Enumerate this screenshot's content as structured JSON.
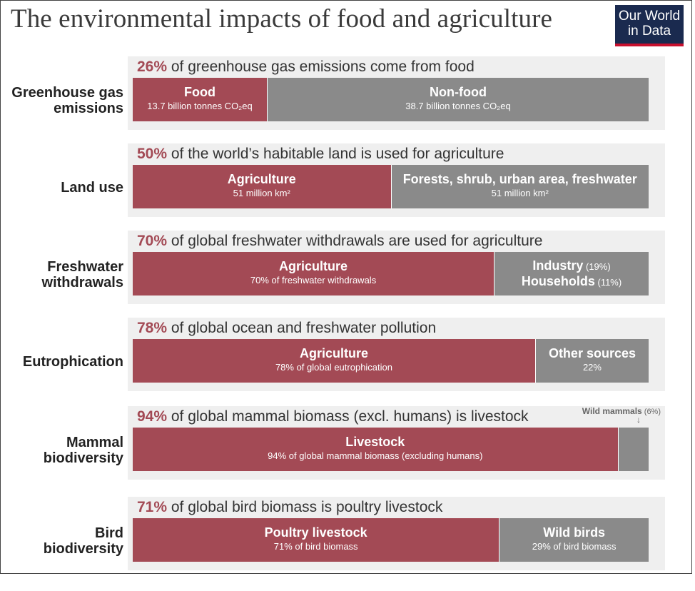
{
  "title": "The environmental impacts of food and agriculture",
  "logo": {
    "line1": "Our World",
    "line2": "in Data"
  },
  "colors": {
    "agri": "#a34a55",
    "other": "#8a8a8a",
    "panel": "#efefef",
    "pct": "#a34a55"
  },
  "chart_data": {
    "type": "bar",
    "stacked": true,
    "orientation": "horizontal",
    "rows": [
      {
        "label_lines": [
          "Greenhouse gas",
          "emissions"
        ],
        "headline_pct": "26%",
        "headline_text": " of greenhouse gas emissions come from food",
        "segments": [
          {
            "label": "Food",
            "sub": "13.7 billion tonnes CO₂eq",
            "value": 26,
            "color": "agri"
          },
          {
            "label": "Non-food",
            "sub": "38.7 billion tonnes CO₂eq",
            "value": 74,
            "color": "other"
          }
        ]
      },
      {
        "label_lines": [
          "Land use"
        ],
        "headline_pct": "50%",
        "headline_text": " of the world’s habitable land is used for agriculture",
        "segments": [
          {
            "label": "Agriculture",
            "sub": "51 million km²",
            "value": 50,
            "color": "agri"
          },
          {
            "label": "Forests, shrub, urban area, freshwater",
            "sub": "51 million km²",
            "value": 50,
            "color": "other"
          }
        ]
      },
      {
        "label_lines": [
          "Freshwater",
          "withdrawals"
        ],
        "headline_pct": "70%",
        "headline_text": " of global freshwater withdrawals are used for agriculture",
        "segments": [
          {
            "label": "Agriculture",
            "sub": "70% of freshwater withdrawals",
            "value": 70,
            "color": "agri"
          },
          {
            "label": "Industry",
            "label_small": " (19%)",
            "label2": "Households",
            "label2_small": " (11%)",
            "value": 30,
            "color": "other"
          }
        ]
      },
      {
        "label_lines": [
          "Eutrophication"
        ],
        "headline_pct": "78%",
        "headline_text": " of global ocean and freshwater pollution",
        "segments": [
          {
            "label": "Agriculture",
            "sub": "78% of global eutrophication",
            "value": 78,
            "color": "agri"
          },
          {
            "label": "Other sources",
            "sub": "22%",
            "value": 22,
            "color": "other"
          }
        ]
      },
      {
        "label_lines": [
          "Mammal",
          "biodiversity"
        ],
        "headline_pct": "94%",
        "headline_text": " of global mammal biomass (excl. humans) is livestock",
        "segments": [
          {
            "label": "Livestock",
            "sub": "94% of global mammal biomass (excluding humans)",
            "value": 94,
            "color": "agri"
          },
          {
            "label": "",
            "value": 6,
            "color": "other"
          }
        ],
        "annotation": {
          "label": "Wild mammals",
          "small": " (6%)",
          "arrow": "↓"
        }
      },
      {
        "label_lines": [
          "Bird",
          "biodiversity"
        ],
        "headline_pct": "71%",
        "headline_text": " of global bird biomass is poultry livestock",
        "segments": [
          {
            "label": "Poultry livestock",
            "sub": "71% of bird biomass",
            "value": 71,
            "color": "agri"
          },
          {
            "label": "Wild birds",
            "sub": "29% of bird biomass",
            "value": 29,
            "color": "other"
          }
        ]
      }
    ]
  }
}
